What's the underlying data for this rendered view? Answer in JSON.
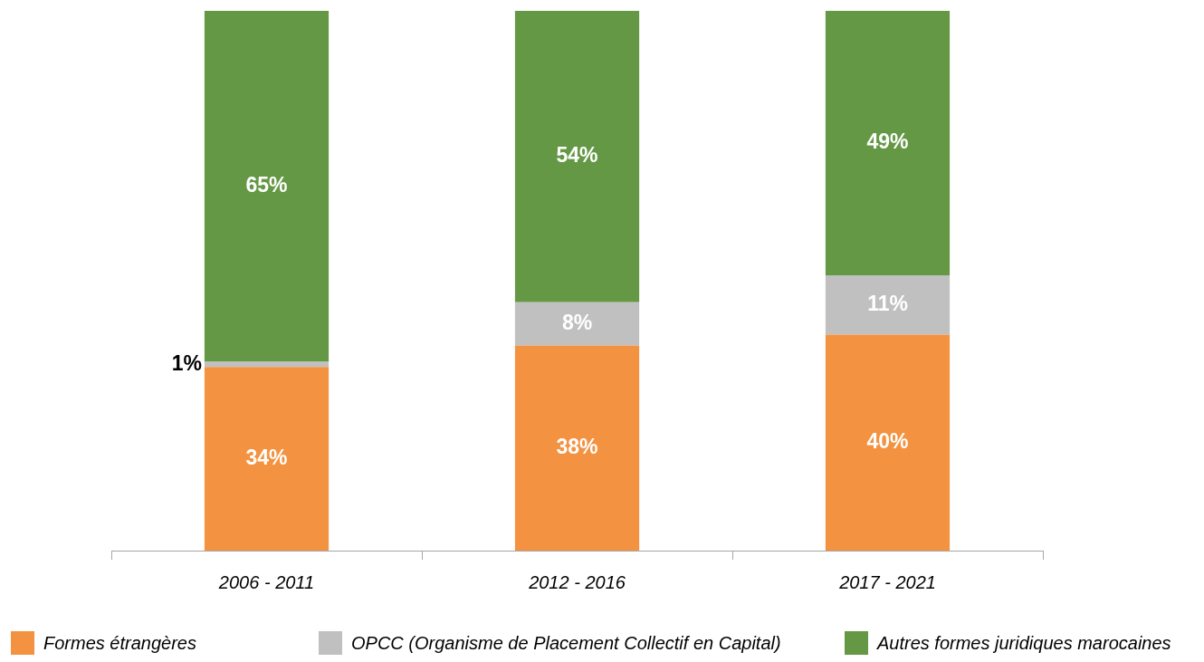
{
  "chart_data": {
    "type": "bar",
    "stacked": true,
    "categories": [
      "2006 - 2011",
      "2012 - 2016",
      "2017 - 2021"
    ],
    "series": [
      {
        "name": "Formes étrangères",
        "color": "#f39240",
        "values": [
          34,
          38,
          40
        ],
        "value_labels": [
          "34%",
          "38%",
          "40%"
        ]
      },
      {
        "name": "OPCC (Organisme de Placement Collectif en Capital)",
        "color": "#c0c0c0",
        "values": [
          1,
          8,
          11
        ],
        "value_labels": [
          "1%",
          "8%",
          "11%"
        ]
      },
      {
        "name": "Autres formes juridiques marocaines",
        "color": "#659845",
        "values": [
          65,
          54,
          49
        ],
        "value_labels": [
          "65%",
          "54%",
          "49%"
        ]
      }
    ],
    "legend": "bottom",
    "tick_labels": "x"
  }
}
